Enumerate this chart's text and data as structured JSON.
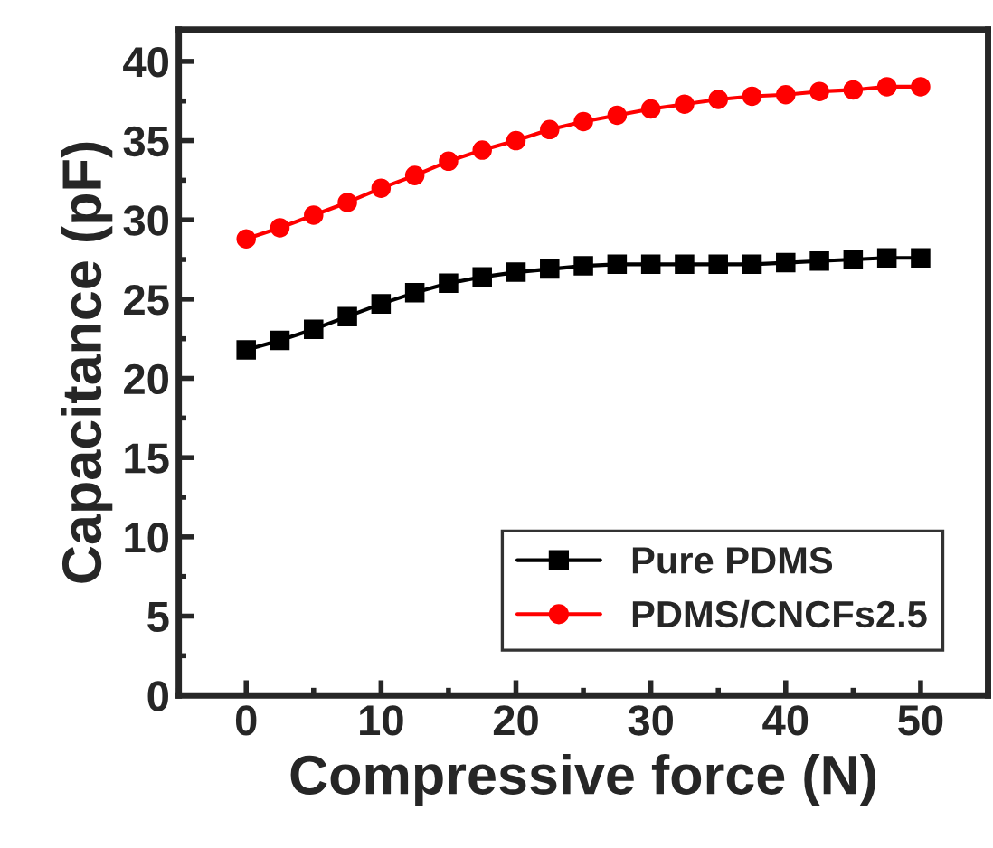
{
  "chart_data": {
    "type": "line",
    "xlabel": "Compressive force (N)",
    "ylabel": "Capacitance (pF)",
    "x": [
      0,
      2.5,
      5,
      7.5,
      10,
      12.5,
      15,
      17.5,
      20,
      22.5,
      25,
      27.5,
      30,
      32.5,
      35,
      37.5,
      40,
      42.5,
      45,
      47.5,
      50
    ],
    "series": [
      {
        "name": "Pure PDMS",
        "color": "#000000",
        "marker": "square",
        "values": [
          21.8,
          22.4,
          23.1,
          23.9,
          24.7,
          25.4,
          26.0,
          26.4,
          26.7,
          26.9,
          27.1,
          27.2,
          27.2,
          27.2,
          27.2,
          27.2,
          27.3,
          27.4,
          27.5,
          27.6,
          27.6
        ]
      },
      {
        "name": "PDMS/CNCFs2.5",
        "color": "#ff0000",
        "marker": "circle",
        "values": [
          28.8,
          29.5,
          30.3,
          31.1,
          32.0,
          32.8,
          33.7,
          34.4,
          35.0,
          35.7,
          36.2,
          36.6,
          37.0,
          37.3,
          37.6,
          37.8,
          37.9,
          38.1,
          38.2,
          38.4,
          38.4
        ]
      }
    ],
    "xlim": [
      -5,
      55
    ],
    "xticks": [
      0,
      10,
      20,
      30,
      40,
      50
    ],
    "ylim": [
      0,
      42
    ],
    "yticks": [
      0,
      5,
      10,
      15,
      20,
      25,
      30,
      35,
      40
    ],
    "legend": "bottom right",
    "grid": false,
    "line_style": "solid"
  }
}
